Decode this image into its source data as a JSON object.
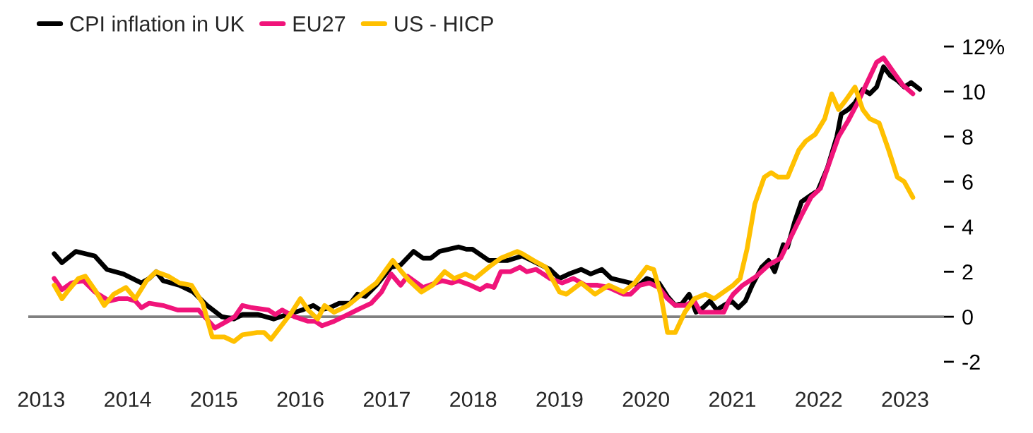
{
  "chart_data": {
    "type": "line",
    "series": [
      {
        "name": "CPI inflation in UK",
        "color": "#000000",
        "x": [
          2013.15,
          2013.24,
          2013.4,
          2013.62,
          2013.76,
          2013.95,
          2014.16,
          2014.25,
          2014.33,
          2014.41,
          2014.6,
          2014.76,
          2014.92,
          2015.09,
          2015.23,
          2015.33,
          2015.51,
          2015.69,
          2015.85,
          2016.02,
          2016.15,
          2016.23,
          2016.34,
          2016.45,
          2016.58,
          2016.66,
          2016.75,
          2016.88,
          2017.05,
          2017.16,
          2017.31,
          2017.42,
          2017.51,
          2017.61,
          2017.83,
          2017.92,
          2017.99,
          2018.18,
          2018.4,
          2018.57,
          2018.73,
          2018.89,
          2019.0,
          2019.11,
          2019.25,
          2019.36,
          2019.49,
          2019.6,
          2019.71,
          2019.82,
          2019.92,
          2020.01,
          2020.15,
          2020.25,
          2020.34,
          2020.42,
          2020.5,
          2020.58,
          2020.66,
          2020.74,
          2020.82,
          2020.9,
          2020.99,
          2021.07,
          2021.15,
          2021.23,
          2021.34,
          2021.42,
          2021.49,
          2021.59,
          2021.64,
          2021.72,
          2021.8,
          2021.91,
          2021.99,
          2022.1,
          2022.21,
          2022.26,
          2022.34,
          2022.42,
          2022.51,
          2022.59,
          2022.67,
          2022.75,
          2022.83,
          2022.91,
          2022.99,
          2023.07,
          2023.17
        ],
        "values": [
          2.8,
          2.4,
          2.9,
          2.7,
          2.1,
          1.9,
          1.5,
          1.7,
          2.0,
          1.6,
          1.4,
          1.1,
          0.5,
          0.0,
          -0.1,
          0.1,
          0.1,
          -0.1,
          0.1,
          0.3,
          0.5,
          0.3,
          0.4,
          0.6,
          0.6,
          1.0,
          0.9,
          1.4,
          2.2,
          2.3,
          2.9,
          2.6,
          2.6,
          2.9,
          3.1,
          3.0,
          3.0,
          2.5,
          2.5,
          2.7,
          2.4,
          2.1,
          1.7,
          1.9,
          2.1,
          1.9,
          2.1,
          1.7,
          1.6,
          1.5,
          1.4,
          1.7,
          1.5,
          0.9,
          0.5,
          0.6,
          1.0,
          0.2,
          0.4,
          0.7,
          0.3,
          0.5,
          0.7,
          0.4,
          0.7,
          1.4,
          2.2,
          2.5,
          2.0,
          3.2,
          3.1,
          4.2,
          5.1,
          5.4,
          5.6,
          6.6,
          8.0,
          9.0,
          9.2,
          9.5,
          10.1,
          9.9,
          10.2,
          11.1,
          10.7,
          10.5,
          10.2,
          10.4,
          10.1
        ]
      },
      {
        "name": "EU27",
        "color": "#f0147a",
        "x": [
          2013.15,
          2013.24,
          2013.35,
          2013.49,
          2013.62,
          2013.79,
          2013.9,
          2014.0,
          2014.09,
          2014.16,
          2014.25,
          2014.41,
          2014.58,
          2014.82,
          2015.01,
          2015.15,
          2015.24,
          2015.33,
          2015.44,
          2015.63,
          2015.71,
          2015.79,
          2015.93,
          2016.09,
          2016.17,
          2016.25,
          2016.39,
          2016.55,
          2016.71,
          2016.82,
          2016.94,
          2017.05,
          2017.16,
          2017.24,
          2017.42,
          2017.64,
          2017.75,
          2017.83,
          2017.97,
          2018.08,
          2018.16,
          2018.24,
          2018.32,
          2018.43,
          2018.54,
          2018.62,
          2018.73,
          2018.89,
          2019.03,
          2019.16,
          2019.3,
          2019.44,
          2019.57,
          2019.74,
          2019.82,
          2019.93,
          2020.04,
          2020.15,
          2020.25,
          2020.34,
          2020.45,
          2020.56,
          2020.63,
          2020.9,
          2020.96,
          2021.01,
          2021.12,
          2021.28,
          2021.42,
          2021.56,
          2021.66,
          2021.8,
          2021.91,
          2022.02,
          2022.12,
          2022.23,
          2022.34,
          2022.45,
          2022.56,
          2022.67,
          2022.75,
          2022.86,
          2022.97,
          2023.09
        ],
        "values": [
          1.7,
          1.2,
          1.5,
          1.6,
          1.1,
          0.7,
          0.8,
          0.8,
          0.7,
          0.4,
          0.6,
          0.5,
          0.3,
          0.3,
          -0.5,
          -0.2,
          0.0,
          0.5,
          0.4,
          0.3,
          0.1,
          0.3,
          0.0,
          -0.2,
          -0.2,
          -0.4,
          -0.2,
          0.1,
          0.4,
          0.6,
          1.1,
          1.9,
          1.4,
          1.8,
          1.3,
          1.6,
          1.5,
          1.6,
          1.4,
          1.2,
          1.4,
          1.3,
          2.0,
          2.0,
          2.2,
          2.0,
          2.1,
          1.7,
          1.5,
          1.7,
          1.4,
          1.4,
          1.3,
          1.0,
          1.0,
          1.4,
          1.5,
          1.3,
          0.8,
          0.5,
          0.5,
          0.7,
          0.2,
          0.2,
          0.7,
          1.0,
          1.4,
          1.8,
          2.3,
          2.6,
          3.4,
          4.5,
          5.3,
          5.7,
          6.8,
          8.0,
          8.7,
          9.5,
          10.4,
          11.3,
          11.5,
          10.9,
          10.3,
          9.9
        ]
      },
      {
        "name": "US - HICP",
        "color": "#ffc000",
        "x": [
          2013.15,
          2013.24,
          2013.32,
          2013.43,
          2013.51,
          2013.62,
          2013.73,
          2013.84,
          2013.98,
          2014.09,
          2014.22,
          2014.33,
          2014.47,
          2014.6,
          2014.74,
          2014.87,
          2014.98,
          2015.12,
          2015.23,
          2015.33,
          2015.5,
          2015.58,
          2015.66,
          2015.8,
          2015.9,
          2016.0,
          2016.09,
          2016.2,
          2016.28,
          2016.39,
          2016.55,
          2016.71,
          2016.88,
          2017.07,
          2017.15,
          2017.26,
          2017.4,
          2017.53,
          2017.67,
          2017.78,
          2017.91,
          2018.02,
          2018.18,
          2018.32,
          2018.51,
          2018.57,
          2018.7,
          2018.84,
          2019.0,
          2019.08,
          2019.25,
          2019.41,
          2019.57,
          2019.74,
          2019.87,
          2020.01,
          2020.09,
          2020.17,
          2020.25,
          2020.34,
          2020.45,
          2020.56,
          2020.69,
          2020.79,
          2020.9,
          2021.01,
          2021.09,
          2021.17,
          2021.26,
          2021.37,
          2021.45,
          2021.53,
          2021.64,
          2021.77,
          2021.85,
          2021.96,
          2022.07,
          2022.15,
          2022.23,
          2022.31,
          2022.42,
          2022.51,
          2022.59,
          2022.7,
          2022.81,
          2022.91,
          2022.99,
          2023.09
        ],
        "values": [
          1.4,
          0.8,
          1.2,
          1.7,
          1.8,
          1.2,
          0.5,
          1.0,
          1.3,
          0.8,
          1.6,
          2.0,
          1.8,
          1.5,
          1.4,
          0.6,
          -0.9,
          -0.9,
          -1.1,
          -0.8,
          -0.7,
          -0.7,
          -1.0,
          -0.3,
          0.2,
          0.8,
          0.3,
          -0.1,
          0.5,
          0.2,
          0.5,
          1.0,
          1.5,
          2.5,
          2.1,
          1.6,
          1.1,
          1.4,
          2.0,
          1.7,
          1.9,
          1.7,
          2.2,
          2.6,
          2.9,
          2.8,
          2.5,
          2.2,
          1.1,
          1.0,
          1.5,
          1.0,
          1.4,
          1.1,
          1.5,
          2.2,
          2.1,
          1.0,
          -0.7,
          -0.7,
          0.2,
          0.8,
          1.0,
          0.8,
          1.1,
          1.4,
          1.7,
          3.0,
          5.0,
          6.2,
          6.4,
          6.2,
          6.2,
          7.4,
          7.8,
          8.1,
          8.8,
          9.9,
          9.2,
          9.6,
          10.2,
          9.2,
          8.8,
          8.6,
          7.4,
          6.2,
          6.0,
          5.3
        ]
      }
    ],
    "xlim": [
      2012.85,
      2023.45
    ],
    "xticks": [
      2013,
      2014,
      2015,
      2016,
      2017,
      2018,
      2019,
      2020,
      2021,
      2022,
      2023
    ],
    "ylim": [
      -2,
      12
    ],
    "yticks": [
      -2,
      0,
      2,
      4,
      6,
      8,
      10,
      {
        "value": 12,
        "label": "12%"
      }
    ],
    "ref_lines": [
      {
        "axis": "y",
        "value": 0,
        "color": "#808080"
      }
    ],
    "legend": "top left",
    "grid": false,
    "line_style": "solid"
  }
}
